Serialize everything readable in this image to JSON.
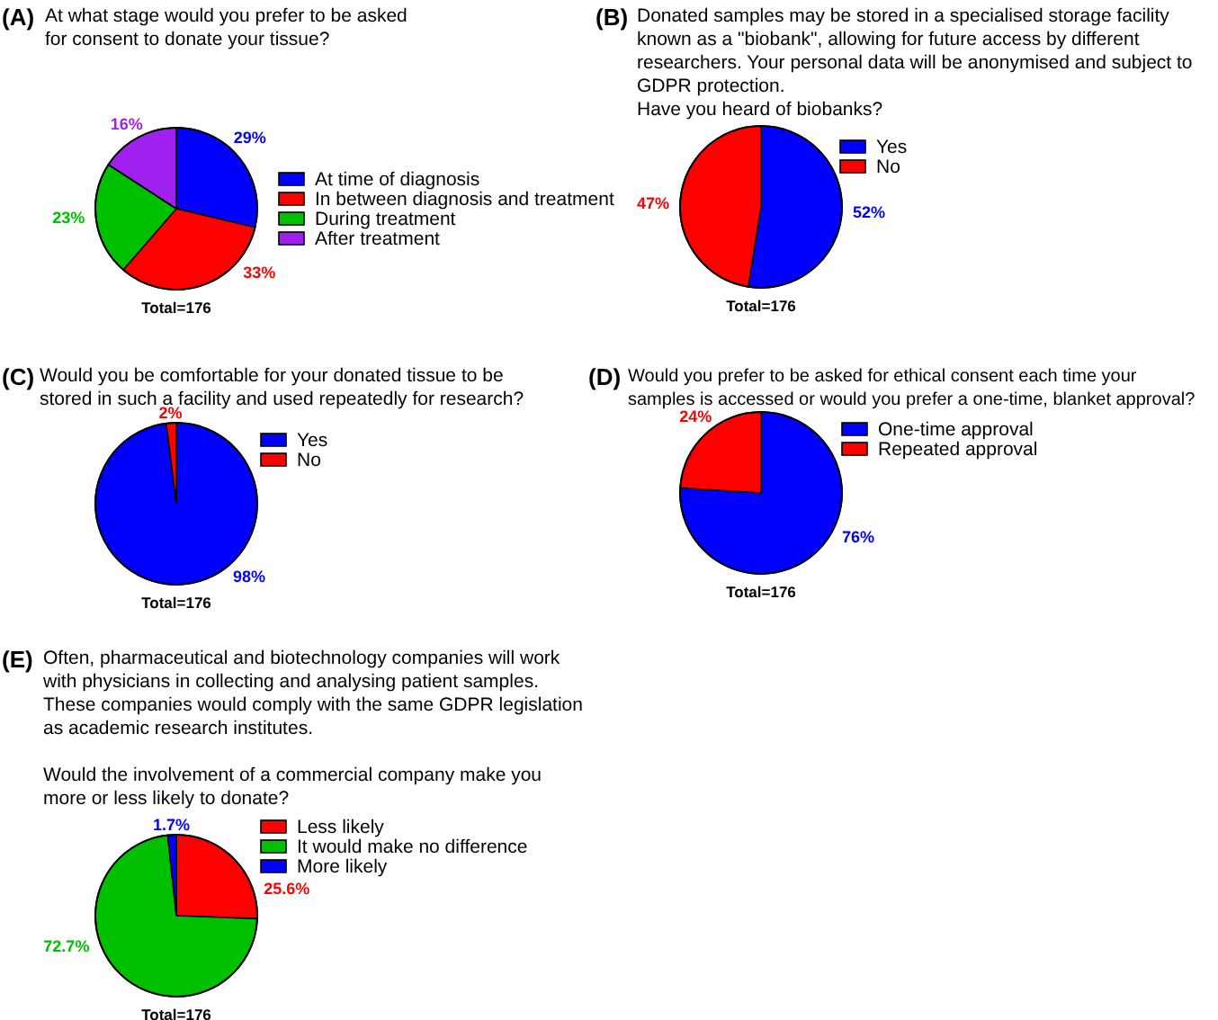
{
  "chart_data": [
    {
      "type": "pie",
      "title": "(A)",
      "subtitle": "At what stage would you prefer to be asked\nfor consent to donate your tissue?",
      "categories": [
        "At time of diagnosis",
        "In between diagnosis and treatment",
        "During treatment",
        "After treatment"
      ],
      "values": [
        29,
        33,
        23,
        16
      ],
      "colors": [
        "#0000ff",
        "#ff0000",
        "#00c000",
        "#a020f0"
      ],
      "value_labels": [
        "29%",
        "33%",
        "23%",
        "16%"
      ],
      "legend": "right",
      "annotations": [
        "Total=176"
      ]
    },
    {
      "type": "pie",
      "title": "(B)",
      "subtitle": "Donated samples may be stored in a specialised storage facility\nknown as a \"biobank\", allowing for future access by different\nresearchers. Your personal data will be anonymised and subject to\nGDPR protection.\nHave you heard of biobanks?",
      "categories": [
        "Yes",
        "No"
      ],
      "values": [
        52,
        47
      ],
      "colors": [
        "#0000ff",
        "#ff0000"
      ],
      "value_labels": [
        "52%",
        "47%"
      ],
      "legend": "top right",
      "annotations": [
        "Total=176"
      ]
    },
    {
      "type": "pie",
      "title": "(C)",
      "subtitle": "Would you be comfortable for your donated tissue to be\nstored in such a facility and used repeatedly for research?",
      "categories": [
        "Yes",
        "No"
      ],
      "values": [
        98,
        2
      ],
      "colors": [
        "#0000ff",
        "#ff0000"
      ],
      "value_labels": [
        "98%",
        "2%"
      ],
      "legend": "top right",
      "annotations": [
        "Total=176"
      ]
    },
    {
      "type": "pie",
      "title": "(D)",
      "subtitle": "Would you prefer to be asked for ethical consent each time your\nsamples is accessed or would you prefer a one-time, blanket approval?",
      "categories": [
        "One-time approval",
        "Repeated approval"
      ],
      "values": [
        76,
        24
      ],
      "colors": [
        "#0000ff",
        "#ff0000"
      ],
      "value_labels": [
        "76%",
        "24%"
      ],
      "legend": "top right",
      "annotations": [
        "Total=176"
      ]
    },
    {
      "type": "pie",
      "title": "(E)",
      "subtitle": "Often, pharmaceutical and biotechnology companies will work\nwith physicians in collecting and analysing patient samples.\nThese companies would comply with the same GDPR legislation\nas academic research institutes.\n\nWould the involvement of a commercial company make you\nmore or less likely to donate?",
      "categories": [
        "Less likely",
        "It would make no difference",
        "More likely"
      ],
      "values": [
        25.6,
        72.7,
        1.7
      ],
      "colors": [
        "#ff0000",
        "#00c000",
        "#0000ff"
      ],
      "value_labels": [
        "25.6%",
        "72.7%",
        "1.7%"
      ],
      "legend": "top right",
      "annotations": [
        "Total=176"
      ]
    }
  ]
}
